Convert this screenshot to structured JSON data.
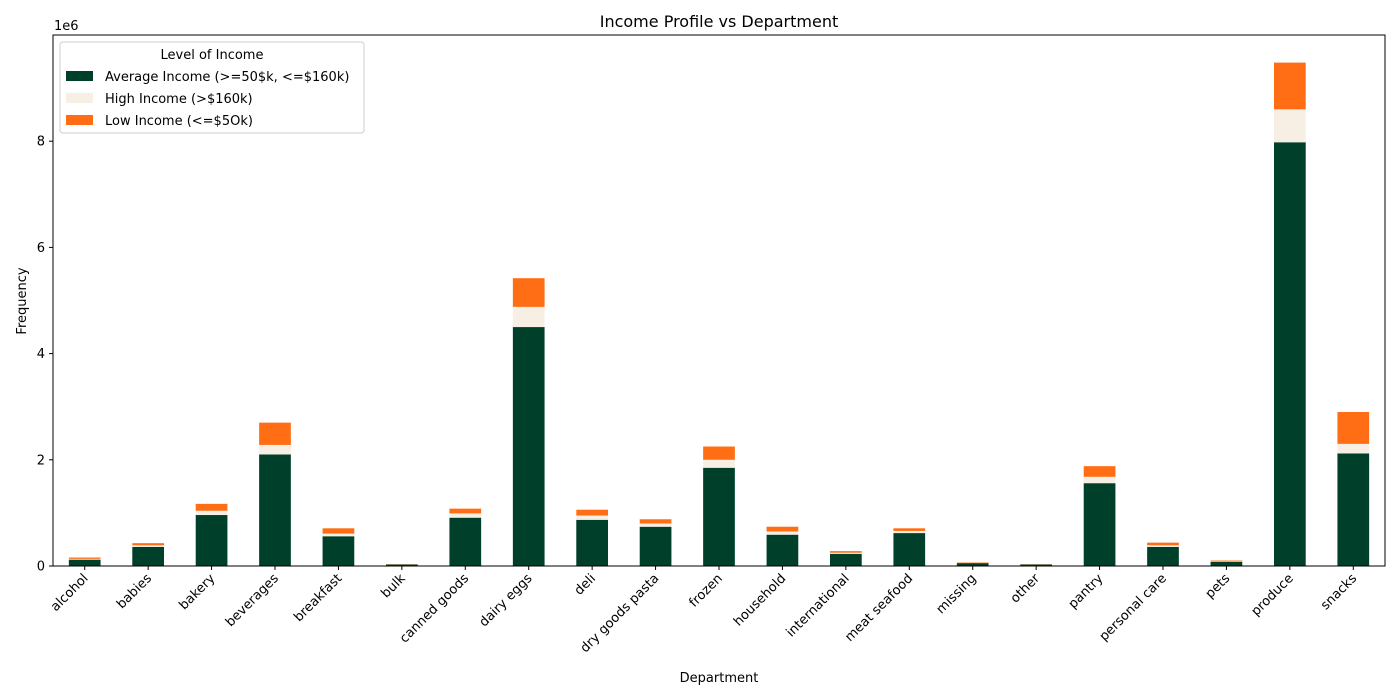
{
  "chart_data": {
    "type": "bar",
    "stacked": true,
    "title": "Income Profile vs Department",
    "xlabel": "Department",
    "ylabel": "Frequency",
    "y_offset_label": "1e6",
    "y_scale": 1000000,
    "ylim": [
      0,
      10000000
    ],
    "yticks": [
      0,
      2000000,
      4000000,
      6000000,
      8000000
    ],
    "ytick_labels": [
      "0",
      "2",
      "4",
      "6",
      "8"
    ],
    "grid": false,
    "legend": {
      "title": "Level of Income",
      "placement": "top-left"
    },
    "categories": [
      "alcohol",
      "babies",
      "bakery",
      "beverages",
      "breakfast",
      "bulk",
      "canned goods",
      "dairy eggs",
      "deli",
      "dry goods pasta",
      "frozen",
      "household",
      "international",
      "meat seafood",
      "missing",
      "other",
      "pantry",
      "personal care",
      "pets",
      "produce",
      "snacks"
    ],
    "series": [
      {
        "name": "Average Income (>=50$k, <=$160k)",
        "color": "#003f2a",
        "values": [
          120000,
          360000,
          960000,
          2100000,
          560000,
          28000,
          910000,
          4500000,
          870000,
          740000,
          1850000,
          590000,
          230000,
          620000,
          55000,
          28000,
          1560000,
          360000,
          80000,
          7980000,
          2120000
        ]
      },
      {
        "name": "High Income (>$160k)",
        "color": "#f8efe4",
        "values": [
          15000,
          30000,
          80000,
          180000,
          50000,
          2000,
          80000,
          380000,
          80000,
          60000,
          150000,
          60000,
          20000,
          40000,
          5000,
          2000,
          120000,
          30000,
          8000,
          620000,
          180000
        ]
      },
      {
        "name": "Low Income (<=$5Ok)",
        "color": "#ff6e14",
        "values": [
          25000,
          40000,
          130000,
          420000,
          100000,
          4000,
          90000,
          540000,
          110000,
          80000,
          250000,
          90000,
          30000,
          50000,
          8000,
          4000,
          200000,
          50000,
          15000,
          880000,
          600000
        ]
      }
    ]
  }
}
